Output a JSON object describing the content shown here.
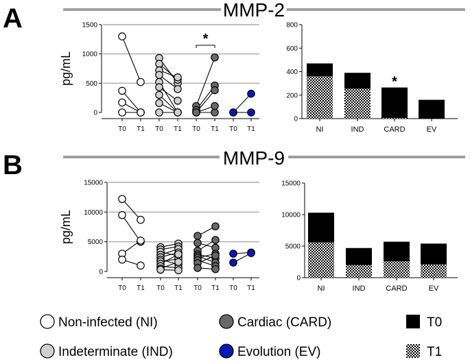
{
  "panels": [
    {
      "letter": "A",
      "title": "MMP-2"
    },
    {
      "letter": "B",
      "title": "MMP-9"
    }
  ],
  "legend": {
    "groups": [
      {
        "label": "Non-infected (NI)",
        "color": "#ffffff"
      },
      {
        "label": "Cardiac (CARD)",
        "color": "#696969"
      },
      {
        "label": "Indeterminate (IND)",
        "color": "#d0d0d0"
      },
      {
        "label": "Evolution (EV)",
        "color": "#0a1ab0"
      }
    ],
    "timepoints": [
      {
        "label": "T0",
        "fill": "#000000"
      },
      {
        "label": "T1",
        "fill": "checker"
      }
    ]
  },
  "chart_data": [
    {
      "type": "scatter",
      "panel": "A",
      "ylabel": "pg/mL",
      "ylim": [
        0,
        1500
      ],
      "yticks": [
        0,
        500,
        1000,
        1500
      ],
      "xtick_labels": [
        "T0",
        "T1",
        "T0",
        "T1",
        "T0",
        "T1",
        "T0",
        "T1"
      ],
      "grid": true,
      "significance": [
        {
          "pair": [
            4,
            5
          ],
          "label": "*"
        }
      ],
      "groups": [
        {
          "name": "NI",
          "color": "#ffffff",
          "pairs": [
            [
              1300,
              520
            ],
            [
              370,
              0
            ],
            [
              170,
              0
            ],
            [
              0,
              0
            ]
          ]
        },
        {
          "name": "IND",
          "color": "#d0d0d0",
          "pairs": [
            [
              930,
              500
            ],
            [
              830,
              560
            ],
            [
              720,
              600
            ],
            [
              640,
              400
            ],
            [
              520,
              0
            ],
            [
              430,
              200
            ],
            [
              300,
              0
            ],
            [
              160,
              0
            ],
            [
              0,
              0
            ]
          ]
        },
        {
          "name": "CARD",
          "color": "#696969",
          "pairs": [
            [
              110,
              940
            ],
            [
              40,
              460
            ],
            [
              0,
              380
            ],
            [
              0,
              0
            ],
            [
              0,
              110
            ]
          ]
        },
        {
          "name": "EV",
          "color": "#0a1ab0",
          "pairs": [
            [
              0,
              320
            ],
            [
              0,
              0
            ]
          ]
        }
      ]
    },
    {
      "type": "bar",
      "panel": "A",
      "stacked": true,
      "categories": [
        "NI",
        "IND",
        "CARD",
        "EV"
      ],
      "ylim": [
        0,
        800
      ],
      "yticks": [
        0,
        200,
        400,
        600,
        800
      ],
      "series": [
        {
          "name": "T1",
          "values": [
            360,
            255,
            5,
            0
          ]
        },
        {
          "name": "T0",
          "values": [
            110,
            135,
            260,
            160
          ]
        }
      ],
      "significance": [
        {
          "category": "CARD",
          "label": "*"
        }
      ]
    },
    {
      "type": "scatter",
      "panel": "B",
      "ylabel": "pg/mL",
      "ylim": [
        0,
        15000
      ],
      "yticks": [
        0,
        5000,
        10000,
        15000
      ],
      "xtick_labels": [
        "T0",
        "T1",
        "T0",
        "T1",
        "T0",
        "T1",
        "T0",
        "T1"
      ],
      "grid": true,
      "groups": [
        {
          "name": "NI",
          "color": "#ffffff",
          "pairs": [
            [
              12200,
              8700
            ],
            [
              9500,
              5000
            ],
            [
              3000,
              5200
            ],
            [
              2000,
              1000
            ]
          ]
        },
        {
          "name": "IND",
          "color": "#d0d0d0",
          "pairs": [
            [
              4100,
              4700
            ],
            [
              3700,
              4200
            ],
            [
              3300,
              2600
            ],
            [
              2800,
              3800
            ],
            [
              2400,
              3200
            ],
            [
              2000,
              1200
            ],
            [
              1700,
              2100
            ],
            [
              1300,
              2900
            ],
            [
              900,
              600
            ],
            [
              500,
              1600
            ],
            [
              300,
              200
            ]
          ]
        },
        {
          "name": "CARD",
          "color": "#696969",
          "pairs": [
            [
              6000,
              7600
            ],
            [
              4800,
              4000
            ],
            [
              3500,
              5300
            ],
            [
              2900,
              2200
            ],
            [
              2600,
              1500
            ],
            [
              2300,
              3000
            ],
            [
              1900,
              900
            ],
            [
              1400,
              2700
            ],
            [
              600,
              400
            ]
          ]
        },
        {
          "name": "EV",
          "color": "#0a1ab0",
          "pairs": [
            [
              3000,
              3200
            ],
            [
              1500,
              3100
            ]
          ]
        }
      ]
    },
    {
      "type": "bar",
      "panel": "B",
      "stacked": true,
      "categories": [
        "NI",
        "IND",
        "CARD",
        "EV"
      ],
      "ylim": [
        0,
        15000
      ],
      "yticks": [
        0,
        5000,
        10000,
        15000
      ],
      "series": [
        {
          "name": "T1",
          "values": [
            5600,
            2000,
            2600,
            2100
          ]
        },
        {
          "name": "T0",
          "values": [
            4700,
            2700,
            3100,
            3300
          ]
        }
      ]
    }
  ]
}
